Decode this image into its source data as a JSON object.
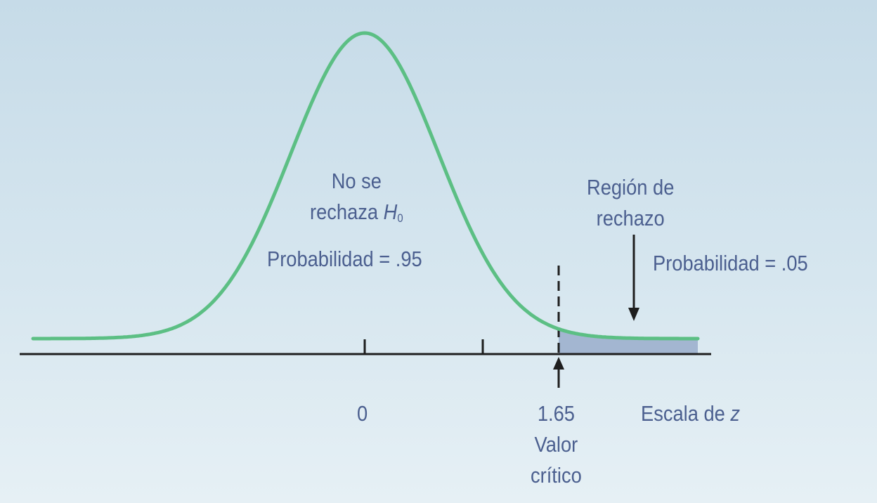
{
  "diagram": {
    "accept_region": {
      "line1": "No se",
      "line2_prefix": "rechaza ",
      "h": "H",
      "h_sub": "0",
      "probability": "Probabilidad = .95"
    },
    "reject_region": {
      "line1": "Región de",
      "line2": "rechazo",
      "probability": "Probabilidad = .05"
    },
    "axis": {
      "zero_label": "0",
      "critical_value": "1.65",
      "critical_caption_line1": "Valor",
      "critical_caption_line2": "crítico",
      "scale_prefix": "Escala de ",
      "scale_var": "z"
    },
    "colors": {
      "curve": "#5cbf84",
      "shade": "#a3b6d1",
      "text": "#4b5f8f",
      "axis": "#1e1e1e"
    }
  }
}
